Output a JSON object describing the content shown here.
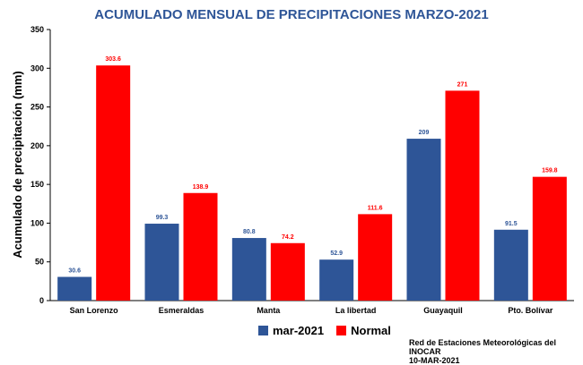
{
  "chart_data": {
    "type": "bar",
    "title": "ACUMULADO MENSUAL DE PRECIPITACIONES MARZO-2021",
    "ylabel": "Acumulado de precipitación (mm)",
    "xlabel": "",
    "ylim": [
      0,
      350
    ],
    "yticks": [
      "0",
      "50",
      "100",
      "150",
      "200",
      "250",
      "300",
      "350"
    ],
    "categories": [
      "San Lorenzo",
      "Esmeraldas",
      "Manta",
      "La libertad",
      "Guayaquil",
      "Pto. Bolívar"
    ],
    "series": [
      {
        "name": "mar-2021",
        "values": [
          30.6,
          99.3,
          80.8,
          52.9,
          209,
          91.5
        ],
        "labels": [
          "30.6",
          "99.3",
          "80.8",
          "52.9",
          "209",
          "91.5"
        ]
      },
      {
        "name": "Normal",
        "values": [
          303.6,
          138.9,
          74.2,
          111.6,
          271,
          159.8
        ],
        "labels": [
          "303.6",
          "138.9",
          "74.2",
          "111.6",
          "271",
          "159.8"
        ]
      }
    ],
    "legend_position": "bottom",
    "grid": false
  },
  "colors": {
    "title": "#2e5597",
    "series_0": "#2e5597",
    "series_1": "#ff0000",
    "axis": "#000000"
  },
  "source": {
    "line1": "Red de Estaciones Meteorológicas del INOCAR",
    "line2": "10-MAR-2021"
  }
}
